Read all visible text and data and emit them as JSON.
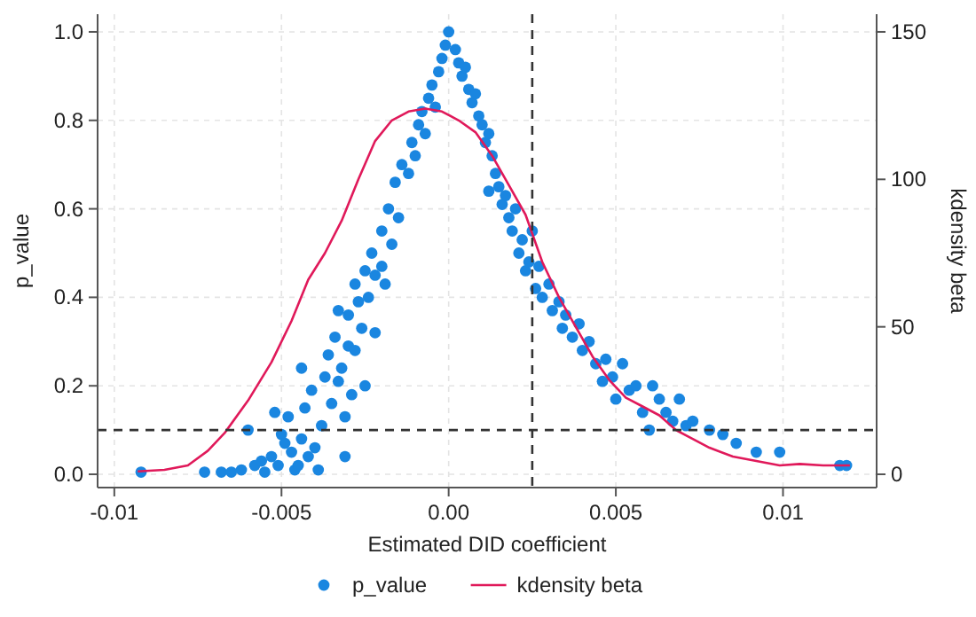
{
  "chart_data": {
    "type": "scatter",
    "xlabel": "Estimated DID coefficient",
    "ylabel": "p_value",
    "y2label": "kdensity beta",
    "xlim": [
      -0.0105,
      0.0128
    ],
    "xticks": [
      -0.01,
      -0.005,
      {
        "value": 0,
        "label": "0.00"
      },
      0.005,
      0.01
    ],
    "ylim": [
      -0.03,
      1.04
    ],
    "yticks": [
      {
        "value": 0,
        "label": "0.0"
      },
      0.2,
      0.4,
      0.6,
      0.8,
      {
        "value": 1,
        "label": "1.0"
      }
    ],
    "y2lim": [
      -4.5,
      156
    ],
    "y2ticks": [
      0,
      50,
      100,
      150
    ],
    "grid": true,
    "legend": "bottom",
    "ref_lines": [
      {
        "axis": "x",
        "value": 0.0025,
        "color": "#333333",
        "line_style": "dashed"
      },
      {
        "axis": "y",
        "value": 0.1,
        "color": "#333333",
        "line_style": "dashed"
      }
    ],
    "series": [
      {
        "name": "p_value",
        "marker": "circle",
        "color": "#1a86e0",
        "x": [
          -0.0092,
          -0.0073,
          -0.0068,
          -0.0065,
          -0.0062,
          -0.006,
          -0.0058,
          -0.0056,
          -0.0055,
          -0.0053,
          -0.0052,
          -0.0051,
          -0.005,
          -0.0049,
          -0.0048,
          -0.0047,
          -0.0046,
          -0.0045,
          -0.0044,
          -0.0044,
          -0.0043,
          -0.0042,
          -0.0041,
          -0.004,
          -0.0039,
          -0.0038,
          -0.0037,
          -0.0036,
          -0.0035,
          -0.0034,
          -0.0033,
          -0.0033,
          -0.0032,
          -0.0031,
          -0.0031,
          -0.003,
          -0.003,
          -0.0029,
          -0.0028,
          -0.0028,
          -0.0027,
          -0.0026,
          -0.0025,
          -0.0025,
          -0.0024,
          -0.0023,
          -0.0022,
          -0.0022,
          -0.002,
          -0.002,
          -0.0019,
          -0.0018,
          -0.0017,
          -0.0016,
          -0.0015,
          -0.0014,
          -0.0012,
          -0.0011,
          -0.001,
          -0.0009,
          -0.0008,
          -0.0007,
          -0.0006,
          -0.0005,
          -0.0004,
          -0.0003,
          -0.0002,
          -0.0001,
          0,
          0.0002,
          0.0003,
          0.0004,
          0.0005,
          0.0006,
          0.0007,
          0.0008,
          0.0009,
          0.001,
          0.0011,
          0.0012,
          0.0013,
          0.0012,
          0.0014,
          0.0015,
          0.0016,
          0.0017,
          0.0018,
          0.0019,
          0.002,
          0.0021,
          0.0022,
          0.0023,
          0.0024,
          0.0025,
          0.0026,
          0.0027,
          0.0028,
          0.003,
          0.0031,
          0.0033,
          0.0034,
          0.0035,
          0.0037,
          0.0039,
          0.004,
          0.0042,
          0.0044,
          0.0046,
          0.0047,
          0.0049,
          0.005,
          0.0052,
          0.0054,
          0.0056,
          0.0058,
          0.006,
          0.0061,
          0.0063,
          0.0065,
          0.0067,
          0.0069,
          0.0071,
          0.0073,
          0.0078,
          0.0082,
          0.0086,
          0.0092,
          0.0099,
          0.0117,
          0.0119
        ],
        "values": [
          0.005,
          0.005,
          0.005,
          0.005,
          0.01,
          0.1,
          0.02,
          0.03,
          0.005,
          0.04,
          0.14,
          0.02,
          0.09,
          0.07,
          0.13,
          0.05,
          0.01,
          0.02,
          0.24,
          0.08,
          0.15,
          0.04,
          0.19,
          0.06,
          0.01,
          0.11,
          0.22,
          0.27,
          0.16,
          0.31,
          0.37,
          0.21,
          0.24,
          0.04,
          0.13,
          0.29,
          0.36,
          0.18,
          0.43,
          0.28,
          0.39,
          0.33,
          0.46,
          0.2,
          0.4,
          0.5,
          0.32,
          0.45,
          0.55,
          0.47,
          0.43,
          0.6,
          0.52,
          0.66,
          0.58,
          0.7,
          0.68,
          0.75,
          0.72,
          0.79,
          0.82,
          0.77,
          0.85,
          0.88,
          0.83,
          0.91,
          0.94,
          0.97,
          1.0,
          0.96,
          0.93,
          0.9,
          0.92,
          0.87,
          0.84,
          0.86,
          0.81,
          0.79,
          0.75,
          0.77,
          0.72,
          0.64,
          0.68,
          0.65,
          0.61,
          0.63,
          0.58,
          0.55,
          0.6,
          0.5,
          0.53,
          0.46,
          0.48,
          0.55,
          0.42,
          0.47,
          0.4,
          0.43,
          0.37,
          0.39,
          0.33,
          0.36,
          0.31,
          0.34,
          0.28,
          0.3,
          0.25,
          0.21,
          0.26,
          0.22,
          0.17,
          0.25,
          0.19,
          0.2,
          0.14,
          0.1,
          0.2,
          0.17,
          0.14,
          0.12,
          0.17,
          0.11,
          0.12,
          0.1,
          0.09,
          0.07,
          0.05,
          0.05,
          0.02,
          0.02
        ]
      },
      {
        "name": "kdensity beta",
        "type": "line",
        "axis": "y2",
        "color": "#e0195a",
        "marker": "none",
        "line_style": "solid",
        "x": [
          -0.0093,
          -0.0085,
          -0.0078,
          -0.0072,
          -0.0067,
          -0.006,
          -0.0053,
          -0.0047,
          -0.0042,
          -0.0037,
          -0.0032,
          -0.0027,
          -0.0022,
          -0.0017,
          -0.0012,
          -0.0007,
          -0.0002,
          0.0003,
          0.0008,
          0.0013,
          0.0018,
          0.0023,
          0.0028,
          0.0033,
          0.0038,
          0.0043,
          0.0048,
          0.0053,
          0.0058,
          0.0063,
          0.0068,
          0.0073,
          0.0078,
          0.0085,
          0.0092,
          0.0099,
          0.0105,
          0.0112,
          0.012
        ],
        "values": [
          1,
          1.5,
          3,
          8,
          14,
          25,
          38,
          52,
          66,
          75,
          86,
          100,
          113,
          120,
          123,
          124,
          123,
          120,
          116,
          108,
          98,
          88,
          72,
          60,
          50,
          40,
          32,
          26,
          23,
          20,
          15,
          12,
          9,
          6,
          4.5,
          3,
          3.5,
          3,
          3
        ]
      }
    ]
  }
}
